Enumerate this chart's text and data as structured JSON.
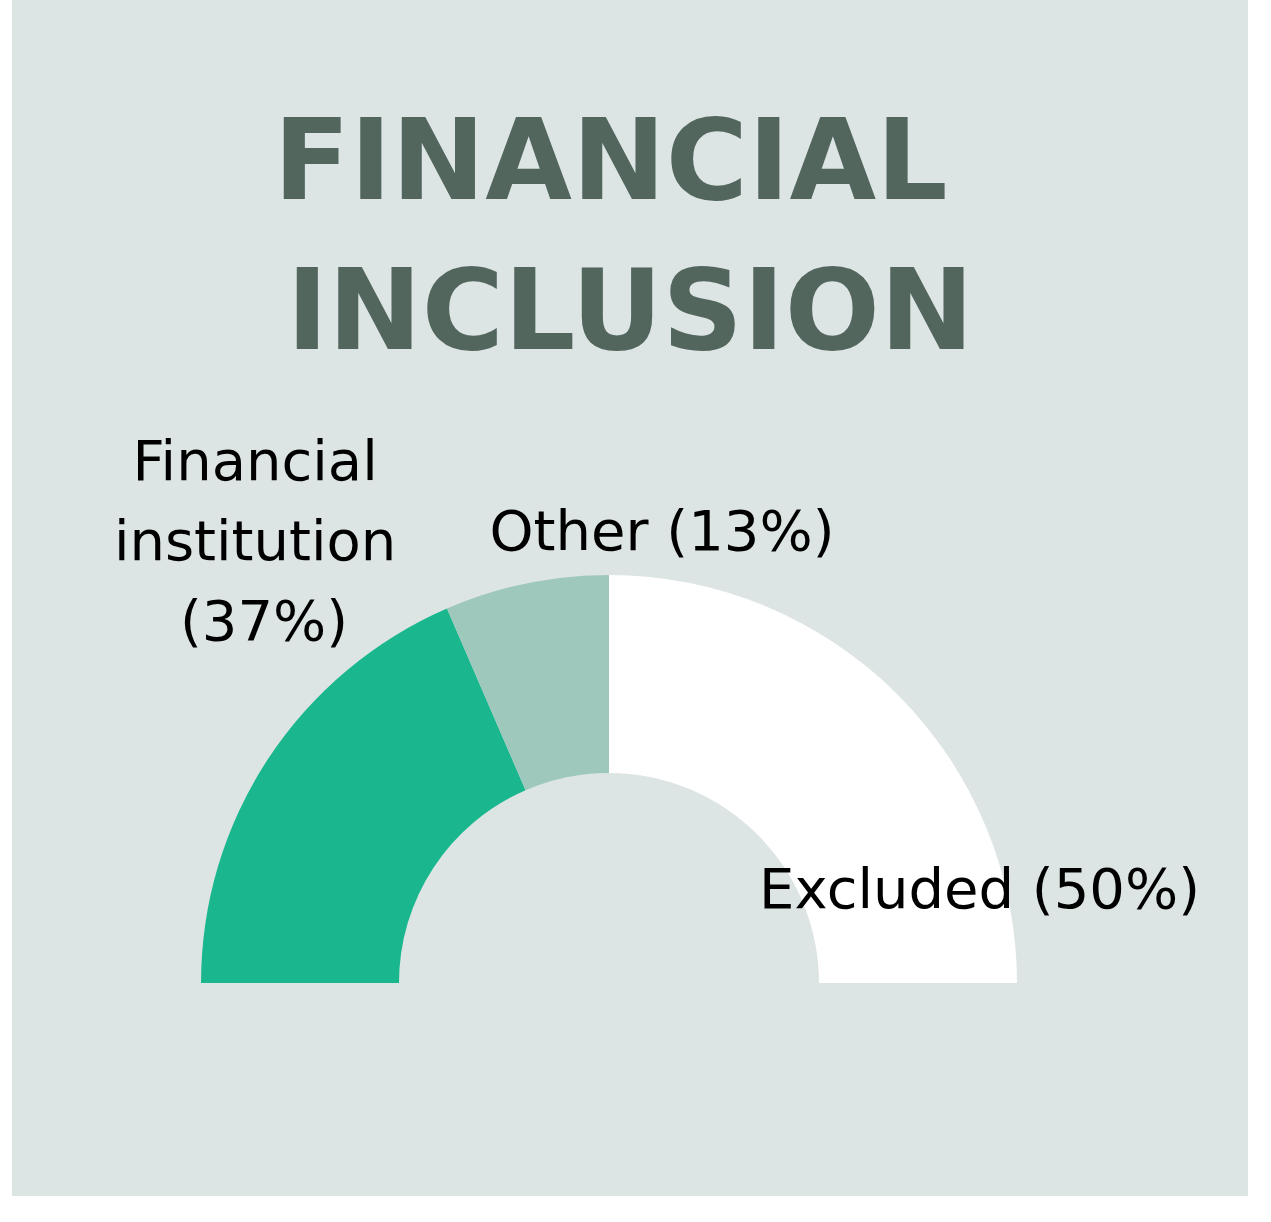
{
  "chart_data": {
    "type": "donut",
    "title": "FINANCIAL INCLUSION",
    "categories": [
      "Financial institution",
      "Other",
      "Excluded"
    ],
    "values": [
      37,
      13,
      50
    ],
    "value_labels": [
      "(37%)",
      "(13%)",
      "(50%)"
    ],
    "colors": [
      "#1ab78f",
      "#9fc8bd",
      "#ffffff"
    ],
    "legend": false
  }
}
